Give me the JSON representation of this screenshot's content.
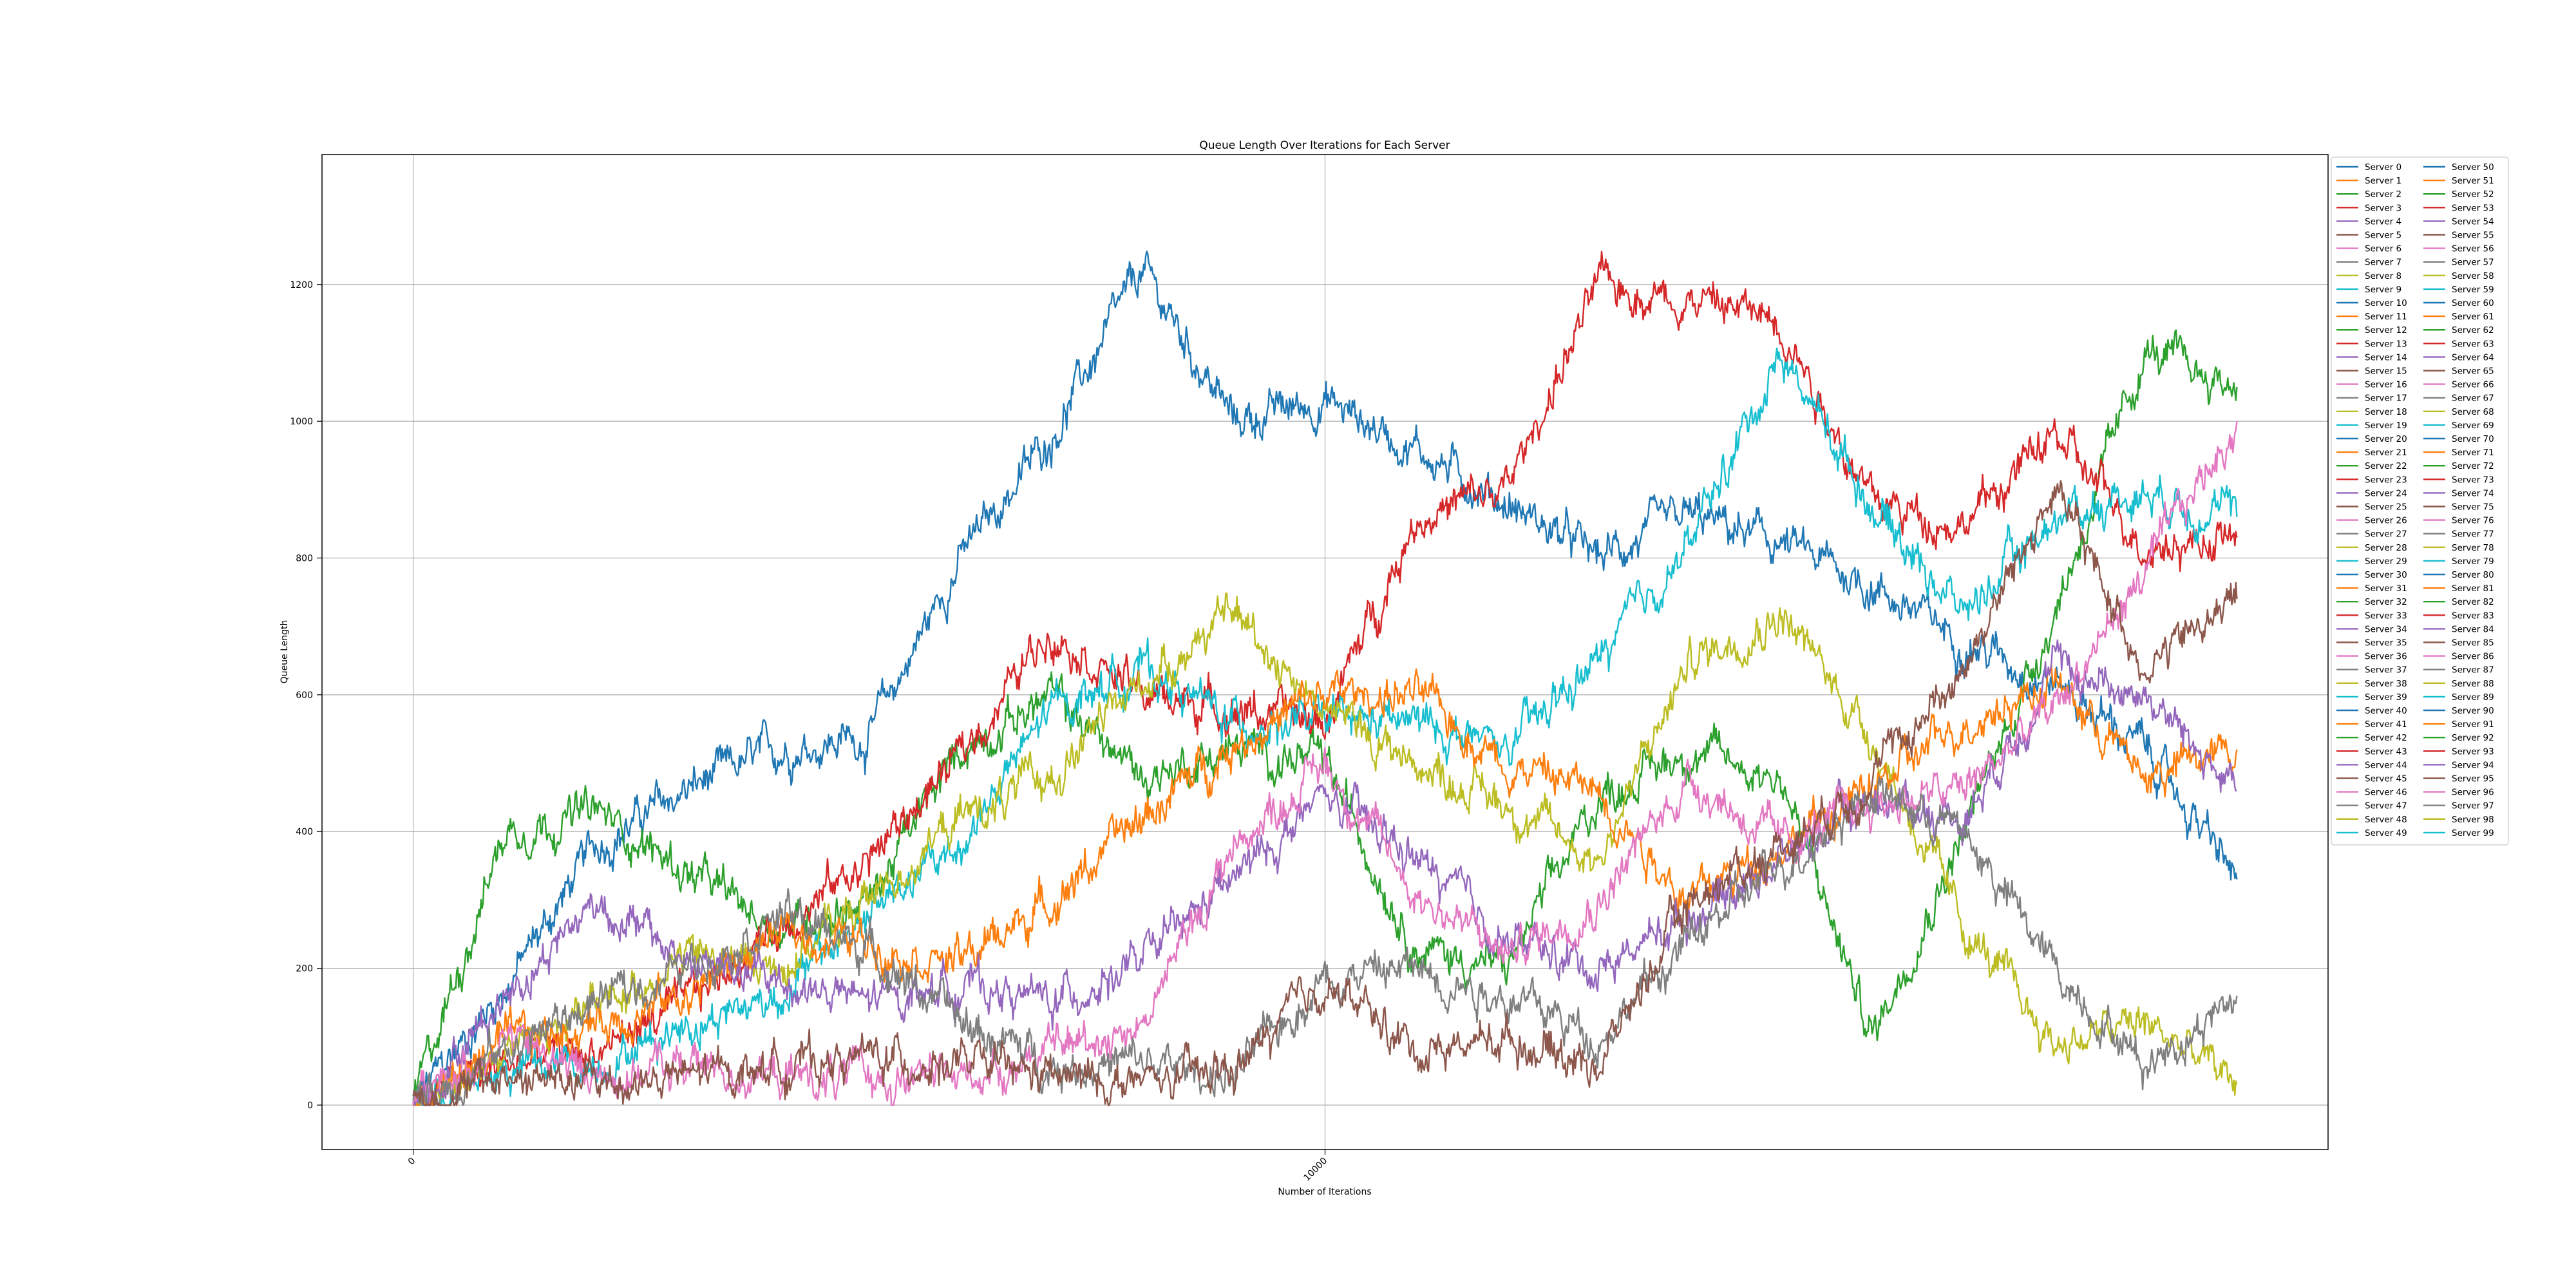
{
  "chart_data": {
    "type": "line",
    "title": "Queue Length Over Iterations for Each Server",
    "xlabel": "Number of Iterations",
    "ylabel": "Queue Length",
    "xlim": [
      -1000,
      21000
    ],
    "ylim": [
      -65,
      1390
    ],
    "xticks": [
      0,
      10000
    ],
    "xtick_labels": [
      "0",
      "10000"
    ],
    "yticks": [
      0,
      200,
      400,
      600,
      800,
      1000,
      1200
    ],
    "ytick_labels": [
      "0",
      "200",
      "400",
      "600",
      "800",
      "1000",
      "1200"
    ],
    "grid": true,
    "legend_position": "outside-right",
    "legend_columns": 2,
    "palette": [
      "#1f77b4",
      "#ff7f0e",
      "#2ca02c",
      "#d62728",
      "#9467bd",
      "#8c564b",
      "#e377c2",
      "#7f7f7f",
      "#bcbd22",
      "#17becf"
    ],
    "legend_labels": [
      "Server 0",
      "Server 1",
      "Server 2",
      "Server 3",
      "Server 4",
      "Server 5",
      "Server 6",
      "Server 7",
      "Server 8",
      "Server 9",
      "Server 10",
      "Server 11",
      "Server 12",
      "Server 13",
      "Server 14",
      "Server 15",
      "Server 16",
      "Server 17",
      "Server 18",
      "Server 19",
      "Server 20",
      "Server 21",
      "Server 22",
      "Server 23",
      "Server 24",
      "Server 25",
      "Server 26",
      "Server 27",
      "Server 28",
      "Server 29",
      "Server 30",
      "Server 31",
      "Server 32",
      "Server 33",
      "Server 34",
      "Server 35",
      "Server 36",
      "Server 37",
      "Server 38",
      "Server 39",
      "Server 40",
      "Server 41",
      "Server 42",
      "Server 43",
      "Server 44",
      "Server 45",
      "Server 46",
      "Server 47",
      "Server 48",
      "Server 49",
      "Server 50",
      "Server 51",
      "Server 52",
      "Server 53",
      "Server 54",
      "Server 55",
      "Server 56",
      "Server 57",
      "Server 58",
      "Server 59",
      "Server 60",
      "Server 61",
      "Server 62",
      "Server 63",
      "Server 64",
      "Server 65",
      "Server 66",
      "Server 67",
      "Server 68",
      "Server 69",
      "Server 70",
      "Server 71",
      "Server 72",
      "Server 73",
      "Server 74",
      "Server 75",
      "Server 76",
      "Server 77",
      "Server 78",
      "Server 79",
      "Server 80",
      "Server 81",
      "Server 82",
      "Server 83",
      "Server 84",
      "Server 85",
      "Server 86",
      "Server 87",
      "Server 88",
      "Server 89",
      "Server 90",
      "Server 91",
      "Server 92",
      "Server 93",
      "Server 94",
      "Server 95",
      "Server 96",
      "Server 97",
      "Server 98",
      "Server 99"
    ],
    "x": [
      0,
      1000,
      2000,
      3000,
      4000,
      5000,
      6000,
      7000,
      8000,
      9000,
      10000,
      11000,
      12000,
      13000,
      14000,
      15000,
      16000,
      17000,
      18000,
      19000,
      20000
    ],
    "visible_series": [
      {
        "label": "Server 0",
        "color": "#1f77b4",
        "values": [
          0,
          170,
          380,
          460,
          520,
          540,
          800,
          980,
          1220,
          1000,
          1030,
          960,
          880,
          800,
          860,
          820,
          760,
          680,
          620,
          520,
          330
        ]
      },
      {
        "label": "Server 2",
        "color": "#2ca02c",
        "values": [
          0,
          400,
          430,
          340,
          260,
          300,
          520,
          600,
          480,
          520,
          500,
          230,
          200,
          450,
          520,
          480,
          100,
          400,
          720,
          1100,
          1050
        ]
      },
      {
        "label": "Server 3",
        "color": "#d62728",
        "values": [
          0,
          60,
          80,
          150,
          260,
          360,
          510,
          700,
          600,
          580,
          560,
          860,
          900,
          1200,
          1180,
          1150,
          880,
          850,
          980,
          820,
          830
        ]
      },
      {
        "label": "Server 9",
        "color": "#17becf",
        "values": [
          0,
          50,
          60,
          120,
          160,
          280,
          380,
          580,
          640,
          560,
          560,
          560,
          520,
          650,
          820,
          1100,
          880,
          720,
          860,
          900,
          860
        ]
      },
      {
        "label": "Server 8",
        "color": "#bcbd22",
        "values": [
          0,
          80,
          140,
          220,
          200,
          300,
          420,
          480,
          620,
          720,
          580,
          500,
          440,
          360,
          650,
          720,
          540,
          260,
          90,
          120,
          30
        ]
      },
      {
        "label": "Server 1",
        "color": "#ff7f0e",
        "values": [
          0,
          90,
          120,
          160,
          250,
          240,
          210,
          300,
          420,
          530,
          600,
          600,
          500,
          460,
          300,
          380,
          460,
          560,
          620,
          480,
          520
        ]
      },
      {
        "label": "Server 4",
        "color": "#9467bd",
        "values": [
          0,
          160,
          300,
          210,
          180,
          150,
          180,
          150,
          210,
          330,
          450,
          360,
          240,
          200,
          280,
          360,
          450,
          420,
          640,
          600,
          460
        ]
      },
      {
        "label": "Server 6",
        "color": "#e377c2",
        "values": [
          0,
          100,
          40,
          60,
          40,
          40,
          40,
          80,
          120,
          380,
          500,
          310,
          220,
          300,
          480,
          380,
          440,
          460,
          580,
          780,
          1000
        ]
      },
      {
        "label": "Server 7",
        "color": "#7f7f7f",
        "values": [
          0,
          80,
          150,
          200,
          280,
          230,
          120,
          60,
          60,
          40,
          190,
          200,
          160,
          100,
          240,
          350,
          460,
          400,
          200,
          60,
          160
        ]
      },
      {
        "label": "Server 5",
        "color": "#8c564b",
        "values": [
          0,
          40,
          30,
          40,
          60,
          70,
          60,
          40,
          30,
          50,
          180,
          80,
          100,
          60,
          300,
          380,
          480,
          640,
          900,
          640,
          740
        ]
      }
    ]
  }
}
